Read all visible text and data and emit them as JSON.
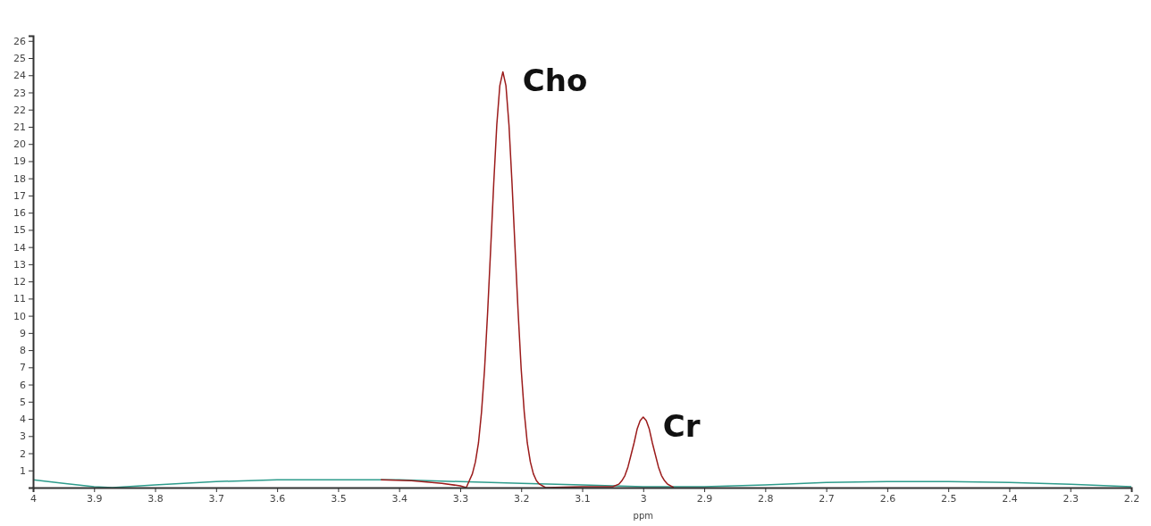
{
  "chart_data": {
    "type": "line",
    "xlabel": "ppm",
    "xlim": [
      4,
      2.2
    ],
    "xticks": [
      4,
      3.9,
      3.8,
      3.7,
      3.6,
      3.5,
      3.4,
      3.3,
      3.2,
      3.1,
      3,
      2.9,
      2.8,
      2.7,
      2.6,
      2.5,
      2.4,
      2.3,
      2.2
    ],
    "ylim": [
      0,
      26.3
    ],
    "yticks": [
      1,
      2,
      3,
      4,
      5,
      6,
      7,
      8,
      9,
      10,
      11,
      12,
      13,
      14,
      15,
      16,
      17,
      18,
      19,
      20,
      21,
      22,
      23,
      24,
      25,
      26
    ],
    "marker": "none",
    "line_style": "solid",
    "series": [
      {
        "color": "#2e9c8c",
        "x": [
          4,
          3.95,
          3.9,
          3.87,
          3.8,
          3.7,
          3.6,
          3.5,
          3.4,
          3.3,
          3.2,
          3.1,
          3,
          2.9,
          2.8,
          2.7,
          2.6,
          2.5,
          2.4,
          2.3,
          2.2
        ],
        "values": [
          0.45,
          0.25,
          0.05,
          0,
          0.15,
          0.35,
          0.45,
          0.45,
          0.45,
          0.35,
          0.25,
          0.15,
          0.05,
          0.05,
          0.15,
          0.3,
          0.35,
          0.35,
          0.3,
          0.2,
          0.05
        ]
      },
      {
        "color": "#9b1b1b",
        "x": [
          3.43,
          3.38,
          3.33,
          3.3,
          3.29,
          3.285,
          3.28,
          3.275,
          3.27,
          3.265,
          3.26,
          3.255,
          3.25,
          3.245,
          3.24,
          3.235,
          3.23,
          3.225,
          3.22,
          3.215,
          3.21,
          3.205,
          3.2,
          3.195,
          3.19,
          3.185,
          3.18,
          3.175,
          3.17,
          3.16,
          3.1,
          3.06,
          3.05,
          3.04,
          3.035,
          3.03,
          3.025,
          3.02,
          3.015,
          3.01,
          3.005,
          3,
          2.995,
          2.99,
          2.985,
          2.98,
          2.975,
          2.97,
          2.965,
          2.96,
          2.95
        ],
        "values": [
          0.45,
          0.4,
          0.25,
          0.1,
          0,
          0.4,
          0.8,
          1.5,
          2.6,
          4.4,
          6.9,
          10.2,
          13.9,
          17.7,
          21.1,
          23.4,
          24.2,
          23.4,
          21.1,
          17.7,
          13.9,
          10.2,
          6.9,
          4.4,
          2.6,
          1.5,
          0.8,
          0.4,
          0.2,
          0,
          0.05,
          0.05,
          0.05,
          0.2,
          0.4,
          0.7,
          1.2,
          1.9,
          2.6,
          3.4,
          3.9,
          4.1,
          3.9,
          3.4,
          2.6,
          1.9,
          1.2,
          0.7,
          0.4,
          0.2,
          0
        ]
      }
    ],
    "annotations": [
      {
        "text": "Cho",
        "x": 3.23,
        "y": 24.2
      },
      {
        "text": "Cr",
        "x": 3,
        "y": 4.1
      }
    ]
  }
}
